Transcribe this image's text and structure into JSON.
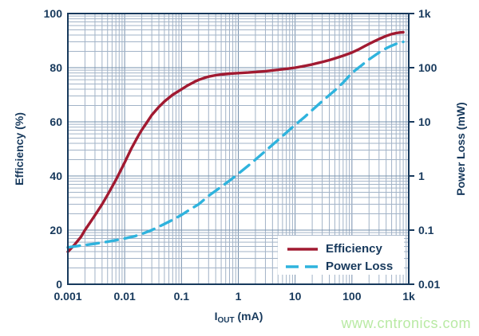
{
  "watermark": "www.cntronics.com",
  "colors": {
    "axis_text": "#17395c",
    "grid_minor": "#a2b3c7",
    "grid_major": "#7690ac",
    "efficiency": "#a11a31",
    "power_loss": "#2fb3dd",
    "watermark": "#b9eaa4",
    "legend_background": "#ffffff"
  },
  "chart_data": {
    "type": "line",
    "title": "",
    "grid": true,
    "x_axis": {
      "label_prefix": "I",
      "label_sub": "OUT",
      "label_suffix": " (mA)",
      "scale": "log",
      "min": 0.001,
      "max": 1000,
      "ticks": [
        {
          "label": "0.001",
          "value": 0.001
        },
        {
          "label": "0.01",
          "value": 0.01
        },
        {
          "label": "0.1",
          "value": 0.1
        },
        {
          "label": "1",
          "value": 1
        },
        {
          "label": "10",
          "value": 10
        },
        {
          "label": "100",
          "value": 100
        },
        {
          "label": "1k",
          "value": 1000
        }
      ]
    },
    "y_left": {
      "label": "Efficiency (%)",
      "scale": "linear",
      "min": 0,
      "max": 100,
      "ticks": [
        {
          "label": "0",
          "value": 0
        },
        {
          "label": "20",
          "value": 20
        },
        {
          "label": "40",
          "value": 40
        },
        {
          "label": "60",
          "value": 60
        },
        {
          "label": "80",
          "value": 80
        },
        {
          "label": "100",
          "value": 100
        }
      ]
    },
    "y_right": {
      "label": "Power Loss (mW)",
      "scale": "log",
      "min": 0.01,
      "max": 1000,
      "ticks": [
        {
          "label": "0.01",
          "value": 0.01
        },
        {
          "label": "0.1",
          "value": 0.1
        },
        {
          "label": "1",
          "value": 1
        },
        {
          "label": "10",
          "value": 10
        },
        {
          "label": "100",
          "value": 100
        },
        {
          "label": "1k",
          "value": 1000
        }
      ]
    },
    "legend": {
      "position": "bottom-right",
      "items": [
        {
          "label": "Efficiency",
          "color": "#a11a31",
          "style": "solid"
        },
        {
          "label": "Power Loss",
          "color": "#2fb3dd",
          "style": "dashed"
        }
      ]
    },
    "series": [
      {
        "name": "Efficiency",
        "axis": "left",
        "color": "#a11a31",
        "style": "solid",
        "points": [
          [
            0.001,
            12
          ],
          [
            0.0013,
            14.5
          ],
          [
            0.0017,
            17.5
          ],
          [
            0.002,
            20
          ],
          [
            0.0025,
            23
          ],
          [
            0.003,
            25.5
          ],
          [
            0.004,
            29.5
          ],
          [
            0.005,
            33
          ],
          [
            0.006,
            36
          ],
          [
            0.007,
            38.5
          ],
          [
            0.0085,
            42
          ],
          [
            0.01,
            45
          ],
          [
            0.013,
            50
          ],
          [
            0.017,
            54.5
          ],
          [
            0.02,
            57
          ],
          [
            0.025,
            60
          ],
          [
            0.03,
            62.5
          ],
          [
            0.04,
            65.5
          ],
          [
            0.05,
            67.5
          ],
          [
            0.07,
            70
          ],
          [
            0.1,
            72
          ],
          [
            0.13,
            73.5
          ],
          [
            0.17,
            74.8
          ],
          [
            0.2,
            75.5
          ],
          [
            0.25,
            76.2
          ],
          [
            0.3,
            76.7
          ],
          [
            0.4,
            77.2
          ],
          [
            0.5,
            77.5
          ],
          [
            0.7,
            77.8
          ],
          [
            1,
            78
          ],
          [
            1.5,
            78.2
          ],
          [
            2,
            78.4
          ],
          [
            3,
            78.7
          ],
          [
            4,
            79
          ],
          [
            5,
            79.2
          ],
          [
            7,
            79.6
          ],
          [
            10,
            80
          ],
          [
            13,
            80.4
          ],
          [
            17,
            80.9
          ],
          [
            20,
            81.2
          ],
          [
            25,
            81.7
          ],
          [
            30,
            82.1
          ],
          [
            40,
            82.8
          ],
          [
            50,
            83.4
          ],
          [
            70,
            84.4
          ],
          [
            100,
            85.6
          ],
          [
            130,
            86.7
          ],
          [
            170,
            88
          ],
          [
            200,
            88.8
          ],
          [
            250,
            89.8
          ],
          [
            300,
            90.6
          ],
          [
            400,
            91.7
          ],
          [
            500,
            92.4
          ],
          [
            600,
            92.8
          ],
          [
            700,
            93
          ],
          [
            800,
            93.1
          ]
        ]
      },
      {
        "name": "Power Loss",
        "axis": "right",
        "color": "#2fb3dd",
        "style": "dashed",
        "points": [
          [
            0.001,
            0.048
          ],
          [
            0.0015,
            0.051
          ],
          [
            0.002,
            0.053
          ],
          [
            0.003,
            0.056
          ],
          [
            0.005,
            0.061
          ],
          [
            0.007,
            0.065
          ],
          [
            0.01,
            0.07
          ],
          [
            0.015,
            0.077
          ],
          [
            0.02,
            0.085
          ],
          [
            0.03,
            0.1
          ],
          [
            0.05,
            0.13
          ],
          [
            0.07,
            0.155
          ],
          [
            0.1,
            0.19
          ],
          [
            0.15,
            0.25
          ],
          [
            0.2,
            0.3
          ],
          [
            0.3,
            0.43
          ],
          [
            0.5,
            0.63
          ],
          [
            0.7,
            0.82
          ],
          [
            1,
            1.1
          ],
          [
            1.5,
            1.55
          ],
          [
            2,
            2.0
          ],
          [
            3,
            2.9
          ],
          [
            5,
            4.6
          ],
          [
            7,
            6.3
          ],
          [
            10,
            8.8
          ],
          [
            15,
            12.5
          ],
          [
            20,
            16.5
          ],
          [
            30,
            24
          ],
          [
            50,
            38
          ],
          [
            70,
            53
          ],
          [
            100,
            80
          ],
          [
            150,
            112
          ],
          [
            200,
            142
          ],
          [
            300,
            190
          ],
          [
            400,
            228
          ],
          [
            500,
            255
          ],
          [
            600,
            275
          ],
          [
            700,
            290
          ],
          [
            800,
            300
          ]
        ]
      }
    ]
  }
}
